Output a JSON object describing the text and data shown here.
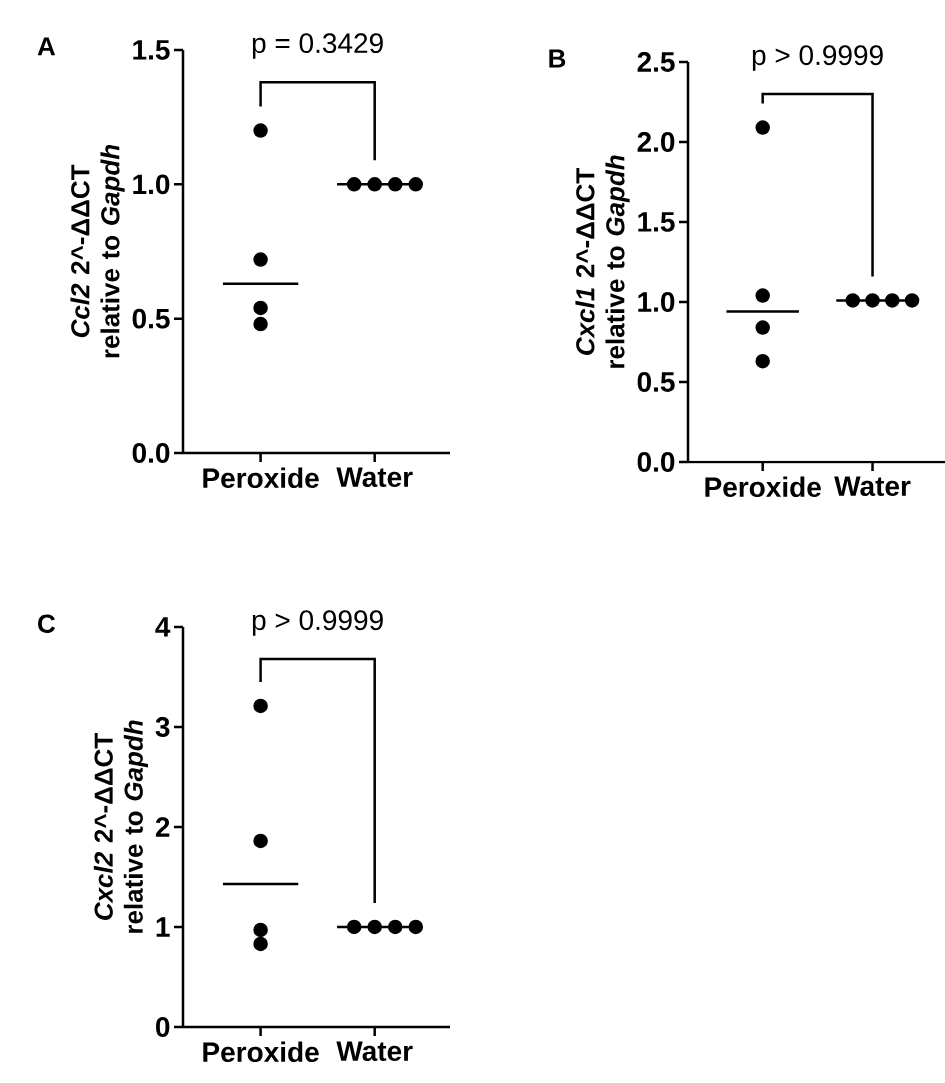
{
  "chart_data": [
    {
      "type": "scatter",
      "title": "A",
      "ylabel": "*Ccl2* 2^-ΔΔCT relative to *Gapdh*",
      "categories": [
        "Peroxide",
        "Water"
      ],
      "ylim": [
        0,
        1.5
      ],
      "yticks": [
        {
          "value": 0,
          "label": "0.0"
        },
        {
          "value": 0.5,
          "label": "0.5"
        },
        {
          "value": 1,
          "label": "1.0"
        },
        {
          "value": 1.5,
          "label": "1.5"
        }
      ],
      "annotations": [
        "p = 0.3429"
      ],
      "marker": "circle",
      "series": [
        {
          "type": "box",
          "color": "#000000",
          "boxes": [
            {
              "low": 0.63,
              "q1": 0.63,
              "median": 0.63,
              "q3": 0.63,
              "high": 0.63
            },
            {
              "low": 1.0,
              "q1": 1.0,
              "median": 1.0,
              "q3": 1.0,
              "high": 1.0
            }
          ]
        },
        {
          "color": "#000000",
          "x": [
            "Peroxide",
            "Peroxide",
            "Peroxide",
            "Peroxide",
            "Water",
            "Water",
            "Water",
            "Water"
          ],
          "values": [
            1.2,
            0.72,
            0.54,
            0.48,
            1.0,
            1.0,
            1.0,
            1.0
          ]
        }
      ]
    },
    {
      "type": "scatter",
      "title": "B",
      "ylabel": "*Cxcl1* 2^-ΔΔCT relative to *Gapdh*",
      "categories": [
        "Peroxide",
        "Water"
      ],
      "ylim": [
        0,
        2.5
      ],
      "yticks": [
        {
          "value": 0,
          "label": "0.0"
        },
        {
          "value": 0.5,
          "label": "0.5"
        },
        {
          "value": 1,
          "label": "1.0"
        },
        {
          "value": 1.5,
          "label": "1.5"
        },
        {
          "value": 2,
          "label": "2.0"
        },
        {
          "value": 2.5,
          "label": "2.5"
        }
      ],
      "annotations": [
        "p > 0.9999"
      ],
      "marker": "circle",
      "series": [
        {
          "type": "box",
          "color": "#000000",
          "boxes": [
            {
              "low": 0.94,
              "q1": 0.94,
              "median": 0.94,
              "q3": 0.94,
              "high": 0.94
            },
            {
              "low": 1.01,
              "q1": 1.01,
              "median": 1.01,
              "q3": 1.01,
              "high": 1.01
            }
          ]
        },
        {
          "color": "#000000",
          "x": [
            "Peroxide",
            "Peroxide",
            "Peroxide",
            "Peroxide",
            "Water",
            "Water",
            "Water",
            "Water"
          ],
          "values": [
            2.09,
            1.04,
            0.84,
            0.63,
            1.01,
            1.01,
            1.01,
            1.01
          ]
        }
      ]
    },
    {
      "type": "scatter",
      "title": "C",
      "ylabel": "*Cxcl2* 2^-ΔΔCT relative to *Gapdh*",
      "categories": [
        "Peroxide",
        "Water"
      ],
      "ylim": [
        0,
        4
      ],
      "yticks": [
        0,
        1,
        2,
        3,
        4
      ],
      "annotations": [
        "p > 0.9999"
      ],
      "marker": "circle",
      "series": [
        {
          "type": "box",
          "color": "#000000",
          "boxes": [
            {
              "low": 1.43,
              "q1": 1.43,
              "median": 1.43,
              "q3": 1.43,
              "high": 1.43
            },
            {
              "low": 1.0,
              "q1": 1.0,
              "median": 1.0,
              "q3": 1.0,
              "high": 1.0
            }
          ]
        },
        {
          "color": "#000000",
          "x": [
            "Peroxide",
            "Peroxide",
            "Peroxide",
            "Peroxide",
            "Water",
            "Water",
            "Water",
            "Water"
          ],
          "values": [
            3.21,
            1.86,
            0.97,
            0.83,
            1.0,
            1.0,
            1.0,
            1.0
          ]
        }
      ]
    }
  ]
}
